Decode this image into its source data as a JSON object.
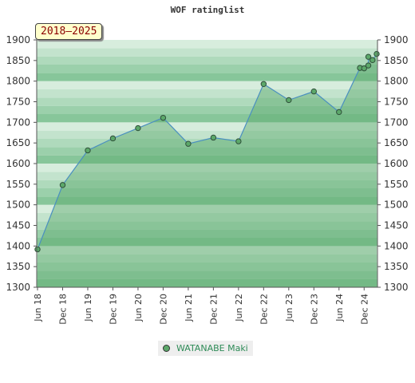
{
  "chart_data": {
    "type": "area",
    "title": "WOF ratinglist",
    "period_label": "2018–2025",
    "xlabel": "",
    "ylabel": "",
    "ylim": [
      1300,
      1900
    ],
    "y_ticks": [
      1300,
      1350,
      1400,
      1450,
      1500,
      1550,
      1600,
      1650,
      1700,
      1750,
      1800,
      1850,
      1900
    ],
    "x_ticks": [
      {
        "label": "Jun 18",
        "date": "2018-06"
      },
      {
        "label": "Dec 18",
        "date": "2018-12"
      },
      {
        "label": "Jun 19",
        "date": "2019-06"
      },
      {
        "label": "Dec 19",
        "date": "2019-12"
      },
      {
        "label": "Jun 20",
        "date": "2020-06"
      },
      {
        "label": "Dec 20",
        "date": "2020-12"
      },
      {
        "label": "Jun 21",
        "date": "2021-06"
      },
      {
        "label": "Dec 21",
        "date": "2021-12"
      },
      {
        "label": "Jun 22",
        "date": "2022-06"
      },
      {
        "label": "Dec 22",
        "date": "2022-12"
      },
      {
        "label": "Jun 23",
        "date": "2023-06"
      },
      {
        "label": "Dec 23",
        "date": "2023-12"
      },
      {
        "label": "Jun 24",
        "date": "2024-06"
      },
      {
        "label": "Dec 24",
        "date": "2024-12"
      }
    ],
    "x_range": [
      "2018-06",
      "2025-03"
    ],
    "series": [
      {
        "name": "WATANABE Maki",
        "color": "#5ca86a",
        "points": [
          {
            "date": "2018-06",
            "value": 1392
          },
          {
            "date": "2018-12",
            "value": 1548
          },
          {
            "date": "2019-06",
            "value": 1632
          },
          {
            "date": "2019-12",
            "value": 1661
          },
          {
            "date": "2020-06",
            "value": 1686
          },
          {
            "date": "2020-12",
            "value": 1711
          },
          {
            "date": "2021-06",
            "value": 1648
          },
          {
            "date": "2021-12",
            "value": 1663
          },
          {
            "date": "2022-06",
            "value": 1654
          },
          {
            "date": "2022-12",
            "value": 1793
          },
          {
            "date": "2023-06",
            "value": 1754
          },
          {
            "date": "2023-12",
            "value": 1775
          },
          {
            "date": "2024-06",
            "value": 1725
          },
          {
            "date": "2024-11",
            "value": 1832
          },
          {
            "date": "2024-12",
            "value": 1831
          },
          {
            "date": "2025-01",
            "value": 1838
          },
          {
            "date": "2025-01",
            "value": 1859
          },
          {
            "date": "2025-02",
            "value": 1851
          },
          {
            "date": "2025-03",
            "value": 1866
          }
        ]
      }
    ],
    "grid": false,
    "legend": "bottom-center"
  },
  "colors": {
    "band_light": "#e6f4ea",
    "band_dark": "#82c496",
    "area_fill": "#5aa86c",
    "line": "#4a8fc0",
    "marker": "#5ca86a"
  }
}
